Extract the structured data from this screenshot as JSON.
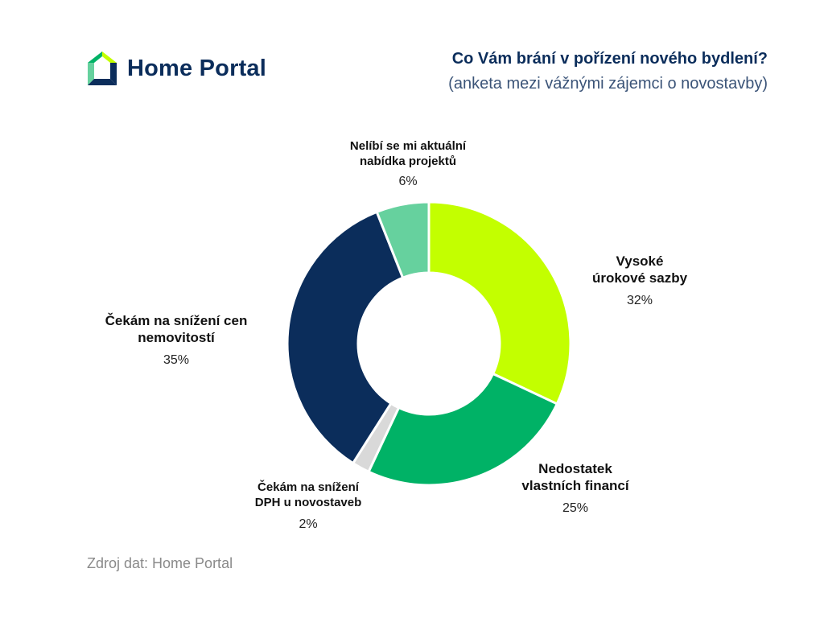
{
  "brand": {
    "name": "Home Portal",
    "logo_icon": "house-logo-icon"
  },
  "title": {
    "main": "Co Vám brání v pořízení nového bydlení?",
    "subtitle": "(anketa mezi vážnými zájemci o novostavby)"
  },
  "source": "Zdroj dat: Home Portal",
  "chart_data": {
    "type": "pie",
    "style": "donut",
    "start": "top",
    "direction": "clockwise",
    "slices": [
      {
        "label_lines": [
          "Vysoké",
          "úrokové sazby"
        ],
        "value": 32,
        "value_label": "32%",
        "color": "#c3ff00"
      },
      {
        "label_lines": [
          "Nedostatek",
          "vlastních financí"
        ],
        "value": 25,
        "value_label": "25%",
        "color": "#00b266"
      },
      {
        "label_lines": [
          "Čekám na snížení",
          "DPH u novostaveb"
        ],
        "value": 2,
        "value_label": "2%",
        "color": "#d9d9d9"
      },
      {
        "label_lines": [
          "Čekám na snížení cen",
          "nemovitostí"
        ],
        "value": 35,
        "value_label": "35%",
        "color": "#0b2d5b"
      },
      {
        "label_lines": [
          "Nelíbí se mi aktuální",
          "nabídka projektů"
        ],
        "value": 6,
        "value_label": "6%",
        "color": "#66d19e"
      }
    ]
  }
}
